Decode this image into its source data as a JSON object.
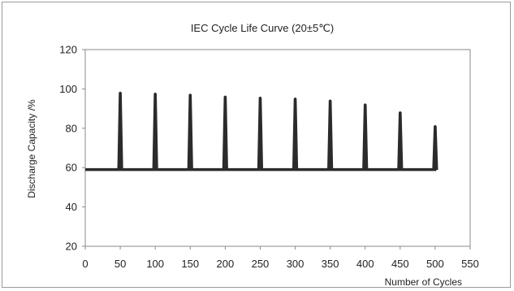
{
  "chart_data": {
    "type": "line",
    "title": "IEC Cycle Life Curve (20±5℃)",
    "xlabel": "Number of Cycles",
    "ylabel": "Discharge Capacity /%",
    "xlim": [
      0,
      550
    ],
    "ylim": [
      20,
      120
    ],
    "x_ticks": [
      0,
      50,
      100,
      150,
      200,
      250,
      300,
      350,
      400,
      450,
      500,
      550
    ],
    "y_ticks": [
      20,
      40,
      60,
      80,
      100,
      120
    ],
    "grid": false,
    "legend": "none",
    "baseline": 59,
    "spike_x": [
      50,
      100,
      150,
      200,
      250,
      300,
      350,
      400,
      450,
      500
    ],
    "spike_y": [
      98.5,
      98,
      97.5,
      96.5,
      96,
      95.5,
      94.5,
      92.5,
      88.5,
      81.5
    ],
    "line_color": "#2b2b2b"
  }
}
